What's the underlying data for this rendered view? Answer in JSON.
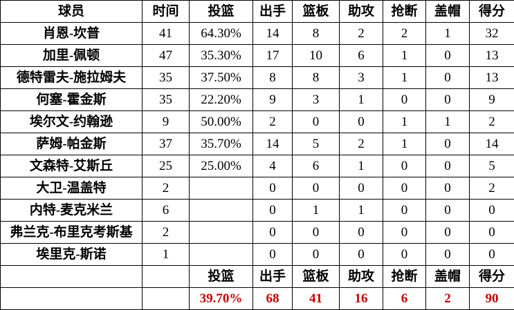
{
  "colors": {
    "total_red": "#cc0000",
    "border": "#000000",
    "text": "#000000",
    "background": "#ffffff"
  },
  "table": {
    "columns": [
      "球员",
      "时间",
      "投篮",
      "出手",
      "篮板",
      "助攻",
      "抢断",
      "盖帽",
      "得分"
    ],
    "players": [
      {
        "name": "肖恩-坎普",
        "minutes": "41",
        "fg_pct": "64.30%",
        "fga": "14",
        "reb": "8",
        "ast": "2",
        "stl": "2",
        "blk": "1",
        "pts": "32"
      },
      {
        "name": "加里-佩顿",
        "minutes": "47",
        "fg_pct": "35.30%",
        "fga": "17",
        "reb": "10",
        "ast": "6",
        "stl": "1",
        "blk": "0",
        "pts": "13"
      },
      {
        "name": "德特雷夫-施拉姆夫",
        "minutes": "35",
        "fg_pct": "37.50%",
        "fga": "8",
        "reb": "8",
        "ast": "3",
        "stl": "1",
        "blk": "0",
        "pts": "13"
      },
      {
        "name": "何塞-霍金斯",
        "minutes": "35",
        "fg_pct": "22.20%",
        "fga": "9",
        "reb": "3",
        "ast": "1",
        "stl": "0",
        "blk": "0",
        "pts": "9"
      },
      {
        "name": "埃尔文-约翰逊",
        "minutes": "9",
        "fg_pct": "50.00%",
        "fga": "2",
        "reb": "0",
        "ast": "0",
        "stl": "1",
        "blk": "1",
        "pts": "2"
      },
      {
        "name": "萨姆-帕金斯",
        "minutes": "37",
        "fg_pct": "35.70%",
        "fga": "14",
        "reb": "5",
        "ast": "2",
        "stl": "1",
        "blk": "0",
        "pts": "14"
      },
      {
        "name": "文森特-艾斯丘",
        "minutes": "25",
        "fg_pct": "25.00%",
        "fga": "4",
        "reb": "6",
        "ast": "1",
        "stl": "0",
        "blk": "0",
        "pts": "5"
      },
      {
        "name": "大卫-温盖特",
        "minutes": "2",
        "fg_pct": "",
        "fga": "0",
        "reb": "0",
        "ast": "0",
        "stl": "0",
        "blk": "0",
        "pts": "2"
      },
      {
        "name": "内特-麦克米兰",
        "minutes": "6",
        "fg_pct": "",
        "fga": "0",
        "reb": "1",
        "ast": "1",
        "stl": "0",
        "blk": "0",
        "pts": "0"
      },
      {
        "name": "弗兰克-布里克考斯基",
        "minutes": "2",
        "fg_pct": "",
        "fga": "0",
        "reb": "0",
        "ast": "0",
        "stl": "0",
        "blk": "0",
        "pts": "0"
      },
      {
        "name": "埃里克-斯诺",
        "minutes": "1",
        "fg_pct": "",
        "fga": "0",
        "reb": "0",
        "ast": "0",
        "stl": "0",
        "blk": "0",
        "pts": "0"
      }
    ],
    "summary_header": [
      "",
      "",
      "投篮",
      "出手",
      "篮板",
      "助攻",
      "抢断",
      "盖帽",
      "得分"
    ],
    "summary_totals": [
      "",
      "",
      "39.70%",
      "68",
      "41",
      "16",
      "6",
      "2",
      "90"
    ]
  }
}
